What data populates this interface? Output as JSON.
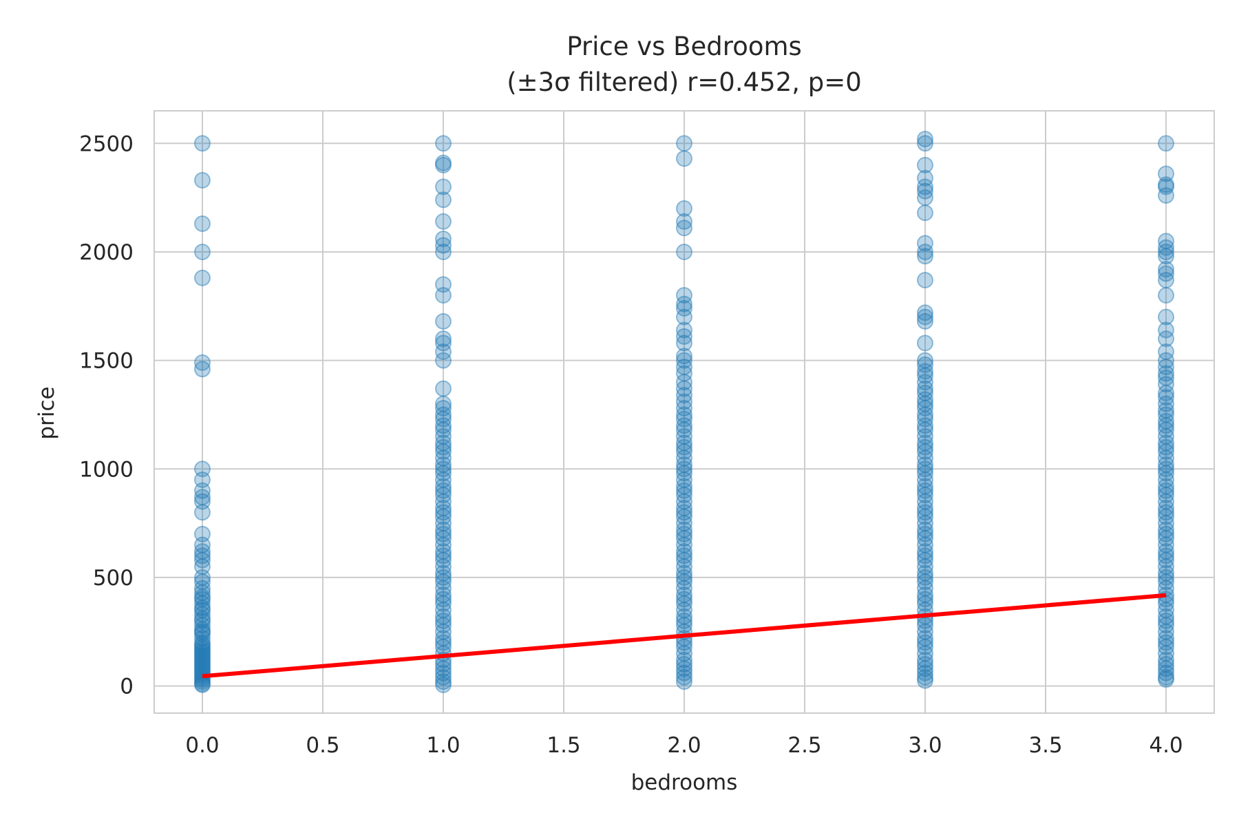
{
  "chart_data": {
    "type": "scatter",
    "title_line1": "Price vs Bedrooms",
    "title_line2": "(±3σ filtered) r=0.452, p=0",
    "xlabel": "bedrooms",
    "ylabel": "price",
    "xlim": [
      -0.2,
      4.2
    ],
    "ylim": [
      -125,
      2650
    ],
    "x_ticks": [
      0.0,
      0.5,
      1.0,
      1.5,
      2.0,
      2.5,
      3.0,
      3.5,
      4.0
    ],
    "x_tick_labels": [
      "0.0",
      "0.5",
      "1.0",
      "1.5",
      "2.0",
      "2.5",
      "3.0",
      "3.5",
      "4.0"
    ],
    "y_ticks": [
      0,
      500,
      1000,
      1500,
      2000,
      2500
    ],
    "y_tick_labels": [
      "0",
      "500",
      "1000",
      "1500",
      "2000",
      "2500"
    ],
    "grid": true,
    "point_color": "#1f77b4",
    "point_alpha": 0.3,
    "fit_line_color": "#ff0000",
    "series": [
      {
        "x": 0,
        "values": [
          2500,
          2330,
          2130,
          2000,
          1880,
          1490,
          1460,
          1000,
          950,
          900,
          870,
          850,
          800,
          700,
          650,
          620,
          600,
          580,
          550,
          500,
          480,
          450,
          430,
          410,
          400,
          380,
          360,
          350,
          330,
          310,
          300,
          280,
          260,
          250,
          240,
          220,
          200,
          190,
          180,
          170,
          160,
          150,
          140,
          130,
          120,
          110,
          100,
          90,
          80,
          70,
          60,
          50,
          40,
          30,
          20,
          10,
          5
        ]
      },
      {
        "x": 1,
        "values": [
          2500,
          2410,
          2400,
          2300,
          2240,
          2140,
          2060,
          2030,
          2000,
          1850,
          1800,
          1680,
          1600,
          1580,
          1540,
          1500,
          1370,
          1300,
          1280,
          1250,
          1230,
          1200,
          1180,
          1150,
          1120,
          1100,
          1080,
          1050,
          1020,
          1000,
          980,
          950,
          920,
          900,
          880,
          850,
          820,
          800,
          780,
          750,
          720,
          700,
          680,
          650,
          620,
          600,
          580,
          550,
          520,
          500,
          480,
          450,
          420,
          400,
          380,
          350,
          320,
          300,
          280,
          250,
          220,
          200,
          180,
          150,
          120,
          100,
          80,
          60,
          40,
          20,
          5
        ]
      },
      {
        "x": 2,
        "values": [
          2500,
          2430,
          2200,
          2140,
          2110,
          2000,
          1800,
          1760,
          1740,
          1700,
          1640,
          1610,
          1580,
          1520,
          1500,
          1470,
          1440,
          1400,
          1370,
          1340,
          1310,
          1280,
          1250,
          1230,
          1200,
          1180,
          1150,
          1120,
          1100,
          1080,
          1050,
          1020,
          1000,
          980,
          950,
          920,
          900,
          880,
          850,
          820,
          800,
          780,
          750,
          720,
          700,
          680,
          650,
          620,
          600,
          580,
          550,
          520,
          500,
          480,
          450,
          420,
          400,
          380,
          350,
          320,
          300,
          280,
          250,
          220,
          200,
          180,
          150,
          120,
          100,
          80,
          60,
          40,
          20
        ]
      },
      {
        "x": 3,
        "values": [
          2520,
          2500,
          2400,
          2340,
          2300,
          2280,
          2250,
          2180,
          2040,
          2000,
          1980,
          1870,
          1720,
          1700,
          1680,
          1580,
          1500,
          1480,
          1450,
          1430,
          1400,
          1370,
          1350,
          1320,
          1300,
          1280,
          1250,
          1230,
          1200,
          1180,
          1150,
          1120,
          1100,
          1080,
          1050,
          1020,
          1000,
          980,
          950,
          920,
          900,
          880,
          850,
          820,
          800,
          780,
          750,
          720,
          700,
          680,
          650,
          620,
          600,
          580,
          550,
          520,
          500,
          480,
          450,
          420,
          400,
          380,
          350,
          320,
          300,
          280,
          250,
          220,
          200,
          180,
          150,
          120,
          100,
          80,
          60,
          40,
          25
        ]
      },
      {
        "x": 4,
        "values": [
          2500,
          2360,
          2310,
          2300,
          2260,
          2050,
          2020,
          2000,
          1980,
          1920,
          1900,
          1870,
          1800,
          1700,
          1640,
          1600,
          1540,
          1500,
          1470,
          1440,
          1420,
          1390,
          1350,
          1330,
          1300,
          1270,
          1250,
          1220,
          1200,
          1180,
          1150,
          1120,
          1100,
          1080,
          1050,
          1020,
          1000,
          980,
          950,
          920,
          900,
          880,
          850,
          820,
          800,
          780,
          750,
          720,
          700,
          680,
          650,
          620,
          600,
          580,
          550,
          520,
          500,
          480,
          450,
          420,
          400,
          380,
          350,
          320,
          300,
          280,
          250,
          220,
          200,
          180,
          150,
          120,
          100,
          80,
          60,
          40,
          30
        ]
      }
    ],
    "fit_line": {
      "x": [
        0,
        4
      ],
      "y": [
        45,
        418
      ]
    }
  }
}
